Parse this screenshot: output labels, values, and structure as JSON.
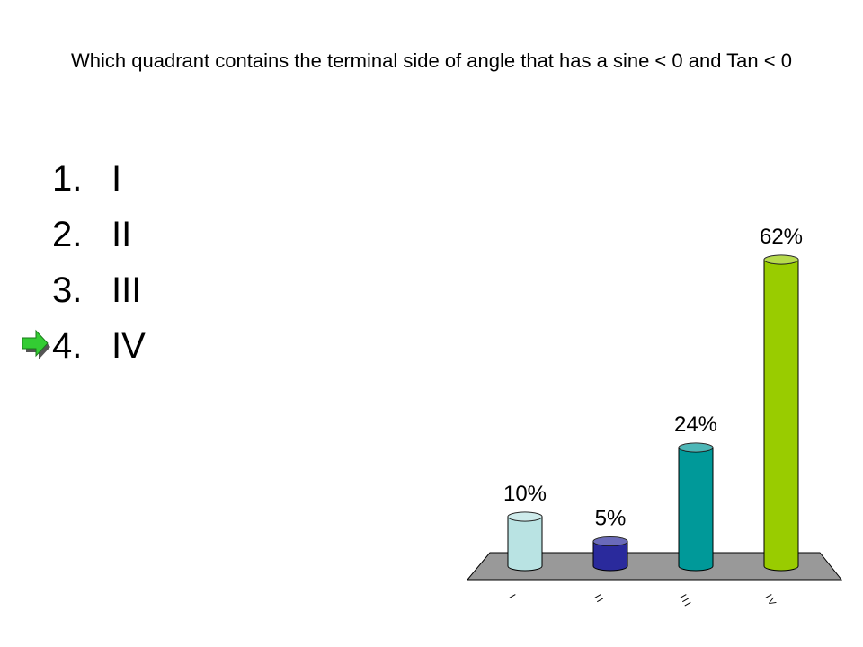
{
  "title": "Which quadrant contains the terminal side of angle that has a sine < 0 and Tan < 0",
  "answers": [
    {
      "number": "1.",
      "text": "I"
    },
    {
      "number": "2.",
      "text": "II"
    },
    {
      "number": "3.",
      "text": "III"
    },
    {
      "number": "4.",
      "text": "IV"
    }
  ],
  "chart_data": {
    "type": "bar",
    "categories": [
      "I",
      "II",
      "III",
      "IV"
    ],
    "values": [
      10,
      5,
      24,
      62
    ],
    "value_labels": [
      "10%",
      "5%",
      "24%",
      "62%"
    ],
    "colors": [
      "#b9e3e3",
      "#2a2a9c",
      "#009999",
      "#99cc00"
    ]
  }
}
